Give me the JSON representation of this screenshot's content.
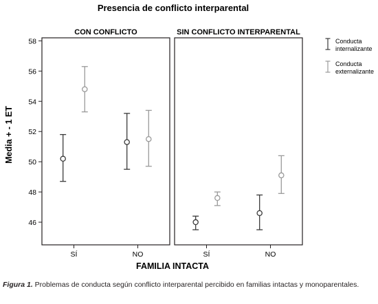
{
  "chart_data": {
    "type": "scatter",
    "subtype": "error-bar",
    "title": "Presencia de conflicto interparental",
    "ylabel": "Media + - 1 ET",
    "xlabel": "FAMILIA INTACTA",
    "ylim": [
      44.5,
      58.2
    ],
    "yticks": [
      46,
      48,
      50,
      52,
      54,
      56,
      58
    ],
    "categories": [
      "SÍ",
      "NO"
    ],
    "legend_position": "right",
    "legend": [
      {
        "label_line1": "Conducta",
        "label_line2": "internalizante",
        "color": "#3a3a3a"
      },
      {
        "label_line1": "Conducta",
        "label_line2": "externalizante",
        "color": "#9a9a9a"
      }
    ],
    "panels": [
      {
        "title": "CON CONFLICTO",
        "series": [
          {
            "name": "Conducta internalizante",
            "means": [
              50.2,
              51.3
            ],
            "lower": [
              48.7,
              49.5
            ],
            "upper": [
              51.8,
              53.2
            ]
          },
          {
            "name": "Conducta externalizante",
            "means": [
              54.8,
              51.5
            ],
            "lower": [
              53.3,
              49.7
            ],
            "upper": [
              56.3,
              53.4
            ]
          }
        ]
      },
      {
        "title": "SIN CONFLICTO INTERPARENTAL",
        "series": [
          {
            "name": "Conducta internalizante",
            "means": [
              46.0,
              46.6
            ],
            "lower": [
              45.5,
              45.5
            ],
            "upper": [
              46.4,
              47.8
            ]
          },
          {
            "name": "Conducta externalizante",
            "means": [
              47.6,
              49.1
            ],
            "lower": [
              47.1,
              47.9
            ],
            "upper": [
              48.0,
              50.4
            ]
          }
        ]
      }
    ]
  },
  "caption": {
    "figure_label": "Figura 1.",
    "text": " Problemas de conducta según conflicto interparental percibido en familias intactas y monoparentales."
  }
}
